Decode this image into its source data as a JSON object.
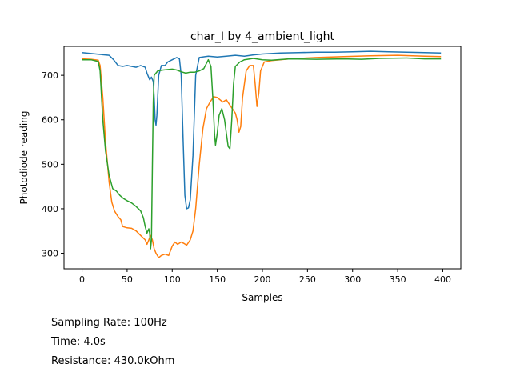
{
  "chart_data": {
    "type": "line",
    "title": "char_I by 4_ambient_light",
    "xlabel": "Samples",
    "ylabel": "Photodiode reading",
    "xlim": [
      -20,
      420
    ],
    "ylim": [
      265,
      765
    ],
    "xticks": [
      0,
      50,
      100,
      150,
      200,
      250,
      300,
      350,
      400
    ],
    "yticks": [
      300,
      400,
      500,
      600,
      700
    ],
    "grid": false,
    "legend": "none",
    "series": [
      {
        "color": "#1f77b4",
        "points": [
          [
            0,
            751
          ],
          [
            10,
            749
          ],
          [
            20,
            747
          ],
          [
            30,
            745
          ],
          [
            35,
            735
          ],
          [
            40,
            722
          ],
          [
            45,
            720
          ],
          [
            50,
            722
          ],
          [
            55,
            720
          ],
          [
            60,
            718
          ],
          [
            65,
            722
          ],
          [
            70,
            718
          ],
          [
            72,
            705
          ],
          [
            75,
            690
          ],
          [
            77,
            696
          ],
          [
            79,
            686
          ],
          [
            80,
            650
          ],
          [
            81,
            600
          ],
          [
            82,
            588
          ],
          [
            83,
            610
          ],
          [
            85,
            700
          ],
          [
            88,
            722
          ],
          [
            92,
            722
          ],
          [
            95,
            730
          ],
          [
            100,
            735
          ],
          [
            105,
            740
          ],
          [
            108,
            737
          ],
          [
            110,
            700
          ],
          [
            112,
            560
          ],
          [
            114,
            430
          ],
          [
            116,
            400
          ],
          [
            118,
            402
          ],
          [
            120,
            420
          ],
          [
            123,
            520
          ],
          [
            126,
            700
          ],
          [
            130,
            740
          ],
          [
            140,
            743
          ],
          [
            150,
            741
          ],
          [
            160,
            743
          ],
          [
            170,
            745
          ],
          [
            180,
            743
          ],
          [
            190,
            746
          ],
          [
            200,
            748
          ],
          [
            220,
            750
          ],
          [
            240,
            751
          ],
          [
            260,
            752
          ],
          [
            280,
            752
          ],
          [
            300,
            753
          ],
          [
            320,
            754
          ],
          [
            340,
            753
          ],
          [
            360,
            752
          ],
          [
            380,
            751
          ],
          [
            398,
            750
          ]
        ]
      },
      {
        "color": "#ff7f0e",
        "points": [
          [
            0,
            737
          ],
          [
            10,
            736
          ],
          [
            18,
            734
          ],
          [
            20,
            722
          ],
          [
            23,
            650
          ],
          [
            26,
            550
          ],
          [
            30,
            460
          ],
          [
            33,
            415
          ],
          [
            36,
            395
          ],
          [
            40,
            382
          ],
          [
            43,
            375
          ],
          [
            45,
            360
          ],
          [
            50,
            357
          ],
          [
            55,
            356
          ],
          [
            60,
            350
          ],
          [
            65,
            340
          ],
          [
            70,
            330
          ],
          [
            72,
            320
          ],
          [
            74,
            330
          ],
          [
            76,
            340
          ],
          [
            78,
            330
          ],
          [
            80,
            310
          ],
          [
            82,
            300
          ],
          [
            85,
            290
          ],
          [
            88,
            295
          ],
          [
            92,
            298
          ],
          [
            96,
            295
          ],
          [
            100,
            316
          ],
          [
            103,
            325
          ],
          [
            106,
            320
          ],
          [
            110,
            325
          ],
          [
            113,
            322
          ],
          [
            116,
            318
          ],
          [
            120,
            330
          ],
          [
            123,
            350
          ],
          [
            126,
            400
          ],
          [
            130,
            500
          ],
          [
            134,
            580
          ],
          [
            138,
            625
          ],
          [
            142,
            640
          ],
          [
            146,
            652
          ],
          [
            150,
            650
          ],
          [
            156,
            640
          ],
          [
            160,
            645
          ],
          [
            165,
            630
          ],
          [
            170,
            615
          ],
          [
            172,
            600
          ],
          [
            174,
            572
          ],
          [
            176,
            585
          ],
          [
            178,
            650
          ],
          [
            182,
            710
          ],
          [
            186,
            722
          ],
          [
            190,
            722
          ],
          [
            192,
            680
          ],
          [
            194,
            630
          ],
          [
            196,
            660
          ],
          [
            198,
            710
          ],
          [
            202,
            730
          ],
          [
            210,
            733
          ],
          [
            230,
            737
          ],
          [
            260,
            740
          ],
          [
            290,
            742
          ],
          [
            320,
            744
          ],
          [
            350,
            745
          ],
          [
            380,
            743
          ],
          [
            398,
            742
          ]
        ]
      },
      {
        "color": "#2ca02c",
        "points": [
          [
            0,
            735
          ],
          [
            10,
            735
          ],
          [
            18,
            731
          ],
          [
            20,
            710
          ],
          [
            23,
            600
          ],
          [
            26,
            530
          ],
          [
            30,
            475
          ],
          [
            34,
            445
          ],
          [
            38,
            440
          ],
          [
            42,
            430
          ],
          [
            46,
            423
          ],
          [
            50,
            418
          ],
          [
            55,
            413
          ],
          [
            60,
            405
          ],
          [
            65,
            395
          ],
          [
            68,
            380
          ],
          [
            70,
            360
          ],
          [
            72,
            345
          ],
          [
            74,
            355
          ],
          [
            75,
            345
          ],
          [
            76,
            310
          ],
          [
            77,
            330
          ],
          [
            78,
            500
          ],
          [
            79,
            640
          ],
          [
            80,
            700
          ],
          [
            84,
            710
          ],
          [
            90,
            712
          ],
          [
            100,
            714
          ],
          [
            105,
            712
          ],
          [
            110,
            708
          ],
          [
            115,
            705
          ],
          [
            120,
            707
          ],
          [
            125,
            707
          ],
          [
            130,
            710
          ],
          [
            135,
            715
          ],
          [
            140,
            735
          ],
          [
            143,
            720
          ],
          [
            145,
            650
          ],
          [
            147,
            565
          ],
          [
            148,
            543
          ],
          [
            150,
            570
          ],
          [
            152,
            610
          ],
          [
            155,
            625
          ],
          [
            158,
            600
          ],
          [
            160,
            570
          ],
          [
            162,
            540
          ],
          [
            164,
            535
          ],
          [
            166,
            600
          ],
          [
            168,
            680
          ],
          [
            170,
            720
          ],
          [
            175,
            730
          ],
          [
            180,
            735
          ],
          [
            190,
            738
          ],
          [
            200,
            735
          ],
          [
            210,
            734
          ],
          [
            230,
            737
          ],
          [
            260,
            736
          ],
          [
            290,
            737
          ],
          [
            310,
            736
          ],
          [
            330,
            738
          ],
          [
            360,
            739
          ],
          [
            380,
            737
          ],
          [
            398,
            737
          ]
        ]
      }
    ]
  },
  "info": {
    "sampling_rate": "Sampling Rate: 100Hz",
    "time": "Time: 4.0s",
    "resistance": "Resistance: 430.0kOhm"
  }
}
